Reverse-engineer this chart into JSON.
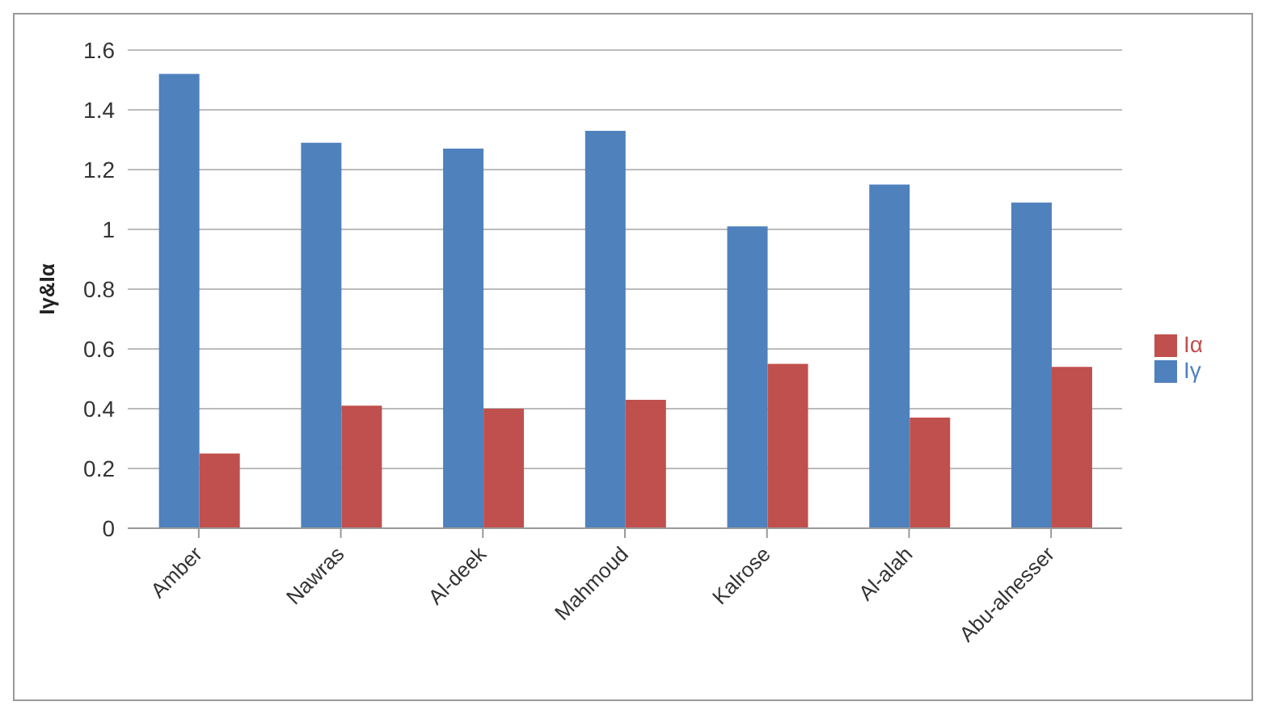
{
  "chart_data": {
    "type": "bar",
    "ylabel": "Iγ&Iα",
    "categories": [
      "Amber",
      "Nawras",
      "Al-deek",
      "Mahmoud",
      "Kalrose",
      "Al-alah",
      "Abu-alnesser"
    ],
    "series": [
      {
        "name": "Iγ",
        "color": "#4f81bd",
        "values": [
          1.52,
          1.29,
          1.27,
          1.33,
          1.01,
          1.15,
          1.09
        ]
      },
      {
        "name": "Iα",
        "color": "#c0504d",
        "values": [
          0.25,
          0.41,
          0.4,
          0.43,
          0.55,
          0.37,
          0.54
        ]
      }
    ],
    "ylim": [
      0,
      1.6
    ],
    "yticks": [
      0,
      0.2,
      0.4,
      0.6,
      0.8,
      1,
      1.2,
      1.4,
      1.6
    ],
    "grid": "y",
    "legend": "right"
  }
}
